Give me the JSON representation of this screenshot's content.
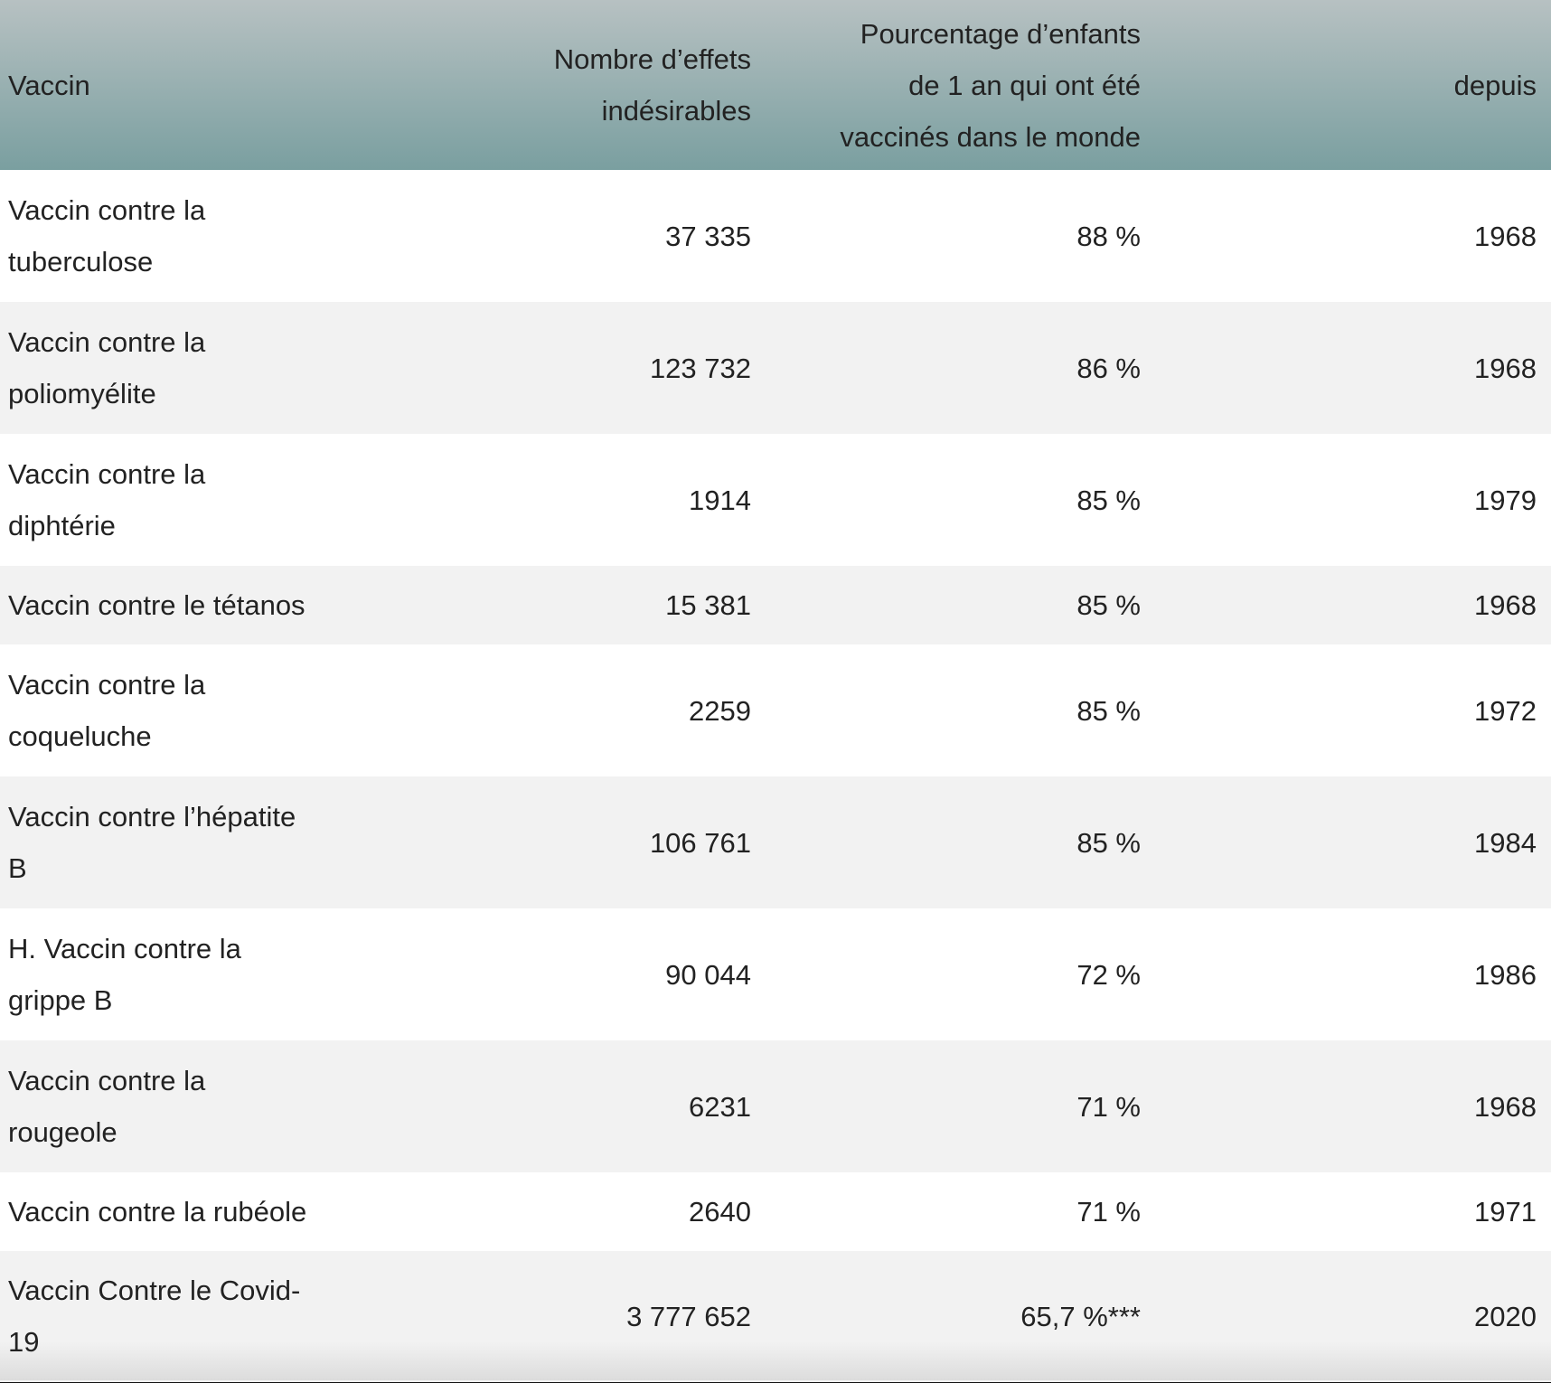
{
  "table": {
    "header": [
      "Vaccin",
      "Nombre d’effets indésirables",
      "Pourcentage d’enfants de 1 an qui ont été vaccinés dans le monde",
      "depuis"
    ],
    "rows": [
      [
        "Vaccin contre la tuberculose",
        "37 335",
        "88 %",
        "1968"
      ],
      [
        "Vaccin contre la poliomyélite",
        "123 732",
        "86 %",
        "1968"
      ],
      [
        "Vaccin contre la diphtérie",
        "1914",
        "85 %",
        "1979"
      ],
      [
        "Vaccin contre le tétanos",
        "15 381",
        "85 %",
        "1968"
      ],
      [
        "Vaccin contre la coqueluche",
        "2259",
        "85 %",
        "1972"
      ],
      [
        "Vaccin contre l’hépatite B",
        "106 761",
        "85 %",
        "1984"
      ],
      [
        "H. Vaccin contre la grippe B",
        "90 044",
        "72 %",
        "1986"
      ],
      [
        "Vaccin contre la rougeole",
        "6231",
        "71 %",
        "1968"
      ],
      [
        "Vaccin contre la rubéole",
        "2640",
        "71 %",
        "1971"
      ],
      [
        "Vaccin Contre le Covid-19",
        "3 777 652",
        "65,7 %***",
        "2020"
      ]
    ]
  }
}
